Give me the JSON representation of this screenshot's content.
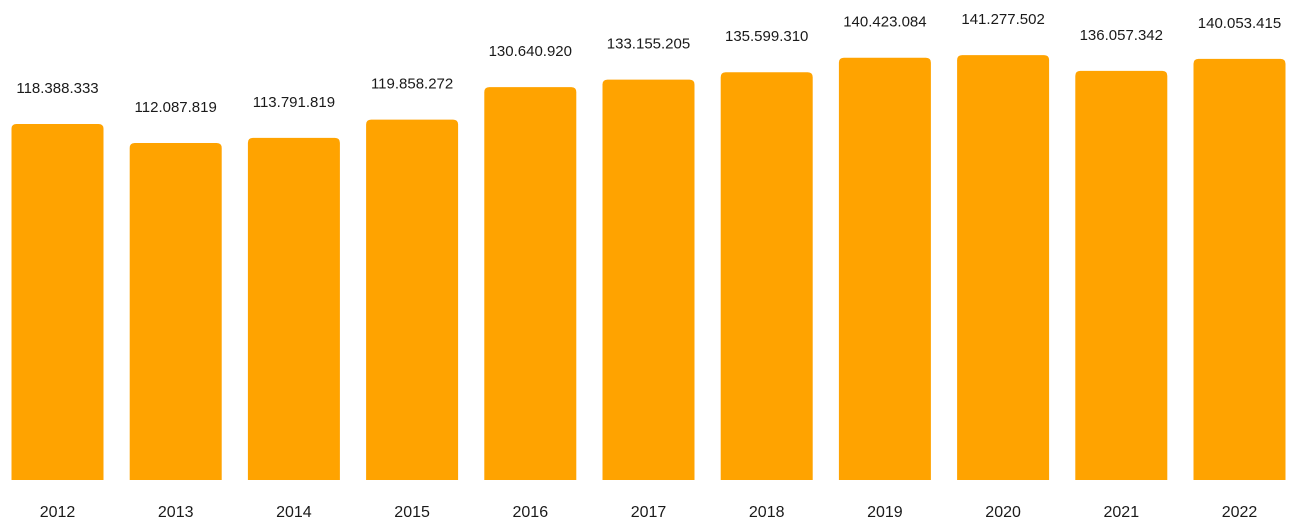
{
  "chart_data": {
    "type": "bar",
    "categories": [
      "2012",
      "2013",
      "2014",
      "2015",
      "2016",
      "2017",
      "2018",
      "2019",
      "2020",
      "2021",
      "2022"
    ],
    "values": [
      118388333,
      112087819,
      113791819,
      119858272,
      130640920,
      133155205,
      135599310,
      140423084,
      141277502,
      136057342,
      140053415
    ],
    "value_labels": [
      "118.388.333",
      "112.087.819",
      "113.791.819",
      "119.858.272",
      "130.640.920",
      "133.155.205",
      "135.599.310",
      "140.423.084",
      "141.277.502",
      "136.057.342",
      "140.053.415"
    ],
    "grid": false,
    "legend": "none",
    "colors": {
      "bar": "#FFA300",
      "label_text": "#1a1a1a"
    }
  }
}
